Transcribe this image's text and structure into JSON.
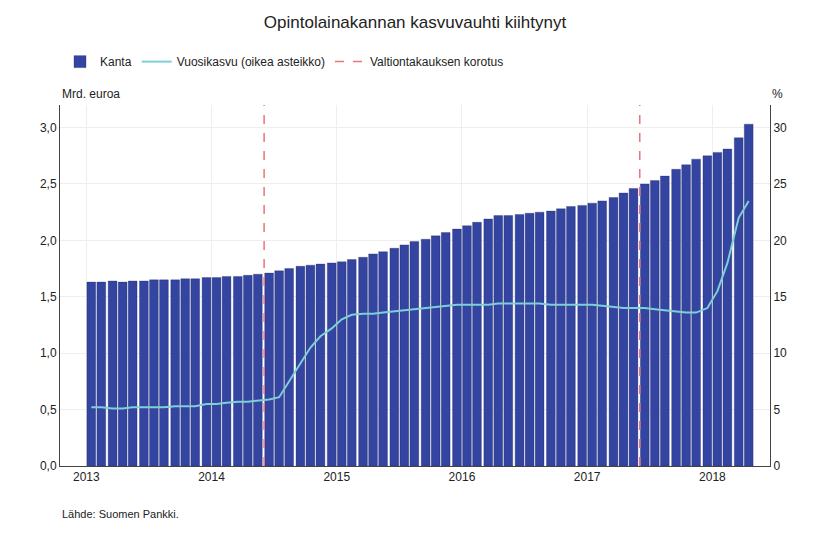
{
  "chart_data": {
    "type": "bar",
    "title": "Opintolainakannan kasvuvauhti kiihtynyt",
    "ylabel": "Mrd. euroa",
    "y2label": "%",
    "annotations": [
      "Lähde: Suomen Pankki."
    ],
    "x": [
      2013.04,
      2013.12,
      2013.21,
      2013.29,
      2013.37,
      2013.46,
      2013.54,
      2013.62,
      2013.71,
      2013.79,
      2013.87,
      2013.96,
      2014.04,
      2014.12,
      2014.21,
      2014.29,
      2014.37,
      2014.46,
      2014.54,
      2014.62,
      2014.71,
      2014.79,
      2014.87,
      2014.96,
      2015.04,
      2015.12,
      2015.21,
      2015.29,
      2015.37,
      2015.46,
      2015.54,
      2015.62,
      2015.71,
      2015.79,
      2015.87,
      2015.96,
      2016.04,
      2016.12,
      2016.21,
      2016.29,
      2016.37,
      2016.46,
      2016.54,
      2016.62,
      2016.71,
      2016.79,
      2016.87,
      2016.96,
      2017.04,
      2017.12,
      2017.21,
      2017.29,
      2017.37,
      2017.46,
      2017.54,
      2017.62,
      2017.71,
      2017.79,
      2017.87,
      2017.96,
      2018.04,
      2018.12,
      2018.21,
      2018.29
    ],
    "series": [
      {
        "name": "Kanta",
        "type": "bar",
        "color": "#3345a0",
        "values": [
          1.63,
          1.63,
          1.64,
          1.63,
          1.64,
          1.64,
          1.65,
          1.65,
          1.65,
          1.66,
          1.66,
          1.67,
          1.67,
          1.68,
          1.68,
          1.69,
          1.7,
          1.71,
          1.73,
          1.75,
          1.77,
          1.78,
          1.79,
          1.8,
          1.81,
          1.83,
          1.85,
          1.88,
          1.9,
          1.93,
          1.96,
          1.99,
          2.01,
          2.04,
          2.07,
          2.1,
          2.13,
          2.16,
          2.19,
          2.22,
          2.22,
          2.23,
          2.24,
          2.25,
          2.26,
          2.28,
          2.3,
          2.31,
          2.33,
          2.35,
          2.38,
          2.42,
          2.46,
          2.5,
          2.53,
          2.57,
          2.63,
          2.67,
          2.72,
          2.75,
          2.78,
          2.81,
          2.91,
          3.03
        ]
      },
      {
        "name": "Vuosikasvu (oikea asteikko)",
        "type": "line",
        "axis": "y2",
        "color": "#7ecfd6",
        "values": [
          5.2,
          5.2,
          5.1,
          5.1,
          5.2,
          5.2,
          5.2,
          5.2,
          5.3,
          5.3,
          5.3,
          5.5,
          5.5,
          5.6,
          5.7,
          5.7,
          5.8,
          5.9,
          6.1,
          7.5,
          9.0,
          10.5,
          11.5,
          12.2,
          13.0,
          13.4,
          13.5,
          13.5,
          13.6,
          13.7,
          13.8,
          13.9,
          14.0,
          14.1,
          14.2,
          14.3,
          14.3,
          14.3,
          14.3,
          14.4,
          14.4,
          14.4,
          14.4,
          14.4,
          14.3,
          14.3,
          14.3,
          14.3,
          14.3,
          14.2,
          14.1,
          14.0,
          14.0,
          14.0,
          13.9,
          13.8,
          13.7,
          13.6,
          13.6,
          14.0,
          15.5,
          18.0,
          22.0,
          23.5
        ]
      },
      {
        "name": "Valtiontakauksen korotus",
        "type": "vline",
        "color": "#e8747c",
        "line_style": "dashed",
        "x": [
          2014.42,
          2017.42
        ]
      }
    ],
    "xlim": [
      2012.79,
      2018.46
    ],
    "xticks": [
      2013,
      2014,
      2015,
      2016,
      2017,
      2018
    ],
    "ylim": [
      0.0,
      3.2
    ],
    "yticks": [
      {
        "value": 0.0,
        "label": "0,0"
      },
      {
        "value": 0.5,
        "label": "0,5"
      },
      {
        "value": 1.0,
        "label": "1,0"
      },
      {
        "value": 1.5,
        "label": "1,5"
      },
      {
        "value": 2.0,
        "label": "2,0"
      },
      {
        "value": 2.5,
        "label": "2,5"
      },
      {
        "value": 3.0,
        "label": "3,0"
      }
    ],
    "y2lim": [
      0,
      32
    ],
    "y2ticks": [
      0,
      5,
      10,
      15,
      20,
      25,
      30
    ],
    "grid": true,
    "legend": "top"
  }
}
